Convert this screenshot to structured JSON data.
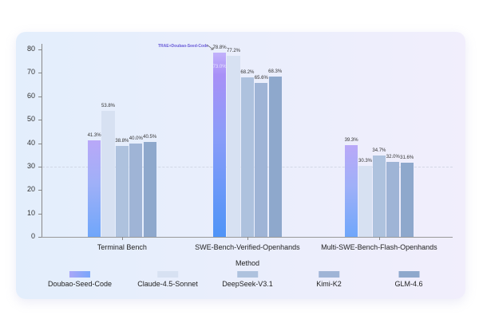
{
  "chart_data": {
    "type": "bar",
    "title": "",
    "xlabel": "",
    "ylabel": "",
    "legend_title": "Method",
    "legend_position": "bottom",
    "ylim": [
      0,
      80
    ],
    "yticks": [
      0,
      10,
      20,
      30,
      40,
      50,
      60,
      70,
      80
    ],
    "grid": false,
    "categories": [
      "Terminal Bench",
      "SWE-Bench-Verified-Openhands",
      "Multi-SWE-Bench-Flash-Openhands"
    ],
    "series": [
      {
        "name": "Doubao-Seed-Code",
        "values": [
          41.3,
          78.8,
          39.3
        ],
        "labels": [
          "41.3%",
          "78.8%",
          "39.3%"
        ],
        "color": "#8fa8f8"
      },
      {
        "name": "Claude-4.5-Sonnet",
        "values": [
          53.8,
          77.2,
          30.3
        ],
        "labels": [
          "53.8%",
          "77.2%",
          "30.3%"
        ],
        "color": "#d7e1f2"
      },
      {
        "name": "DeepSeek-V3.1",
        "values": [
          38.8,
          68.2,
          34.7
        ],
        "labels": [
          "38.8%",
          "68.2%",
          "34.7%"
        ],
        "color": "#aec2de"
      },
      {
        "name": "Kimi-K2",
        "values": [
          40.0,
          65.6,
          32.0
        ],
        "labels": [
          "40.0%",
          "65.6%",
          "32.0%"
        ],
        "color": "#9fb4d6"
      },
      {
        "name": "GLM-4.6",
        "values": [
          40.5,
          68.3,
          31.6
        ],
        "labels": [
          "40.5%",
          "68.3%",
          "31.6%"
        ],
        "color": "#8ea8cc"
      }
    ],
    "annotations": [
      {
        "text": "TRAE+Doubao-Seed-Code",
        "target": "SWE-Bench-Verified-Openhands / Doubao-Seed-Code",
        "value": 78.8
      },
      {
        "text": "73.0%",
        "target": "SWE-Bench-Verified-Openhands / Doubao-Seed-Code (inner base value)",
        "value": 73.0
      }
    ],
    "reference_line": {
      "y": 30,
      "style": "dashed"
    }
  },
  "ui": {
    "yticks": [
      "0",
      "10",
      "20",
      "30",
      "40",
      "50",
      "60",
      "70",
      "80"
    ],
    "categories": [
      "Terminal Bench",
      "SWE-Bench-Verified-Openhands",
      "Multi-SWE-Bench-Flash-Openhands"
    ],
    "legend_title": "Method",
    "legend": [
      "Doubao-Seed-Code",
      "Claude-4.5-Sonnet",
      "DeepSeek-V3.1",
      "Kimi-K2",
      "GLM-4.6"
    ],
    "annotation": "TRAE+Doubao-Seed-Code",
    "inner_label": "73.0%"
  }
}
